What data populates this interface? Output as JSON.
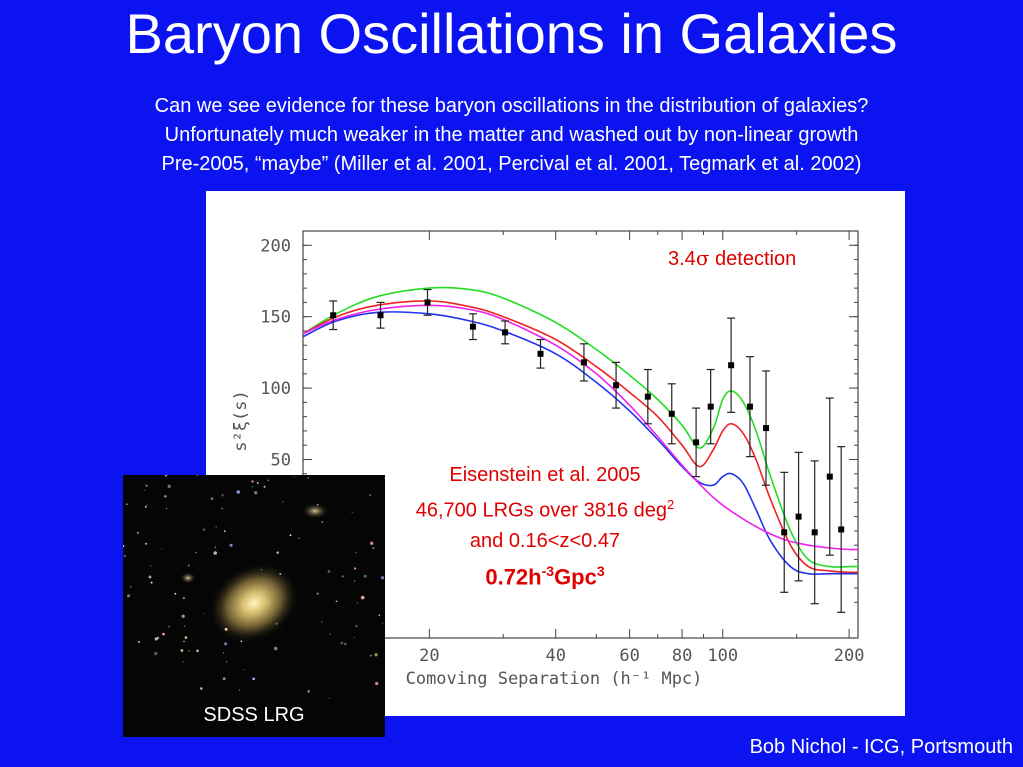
{
  "slide": {
    "title": "Baryon Oscillations in Galaxies",
    "bullets": [
      "Can we see evidence for these baryon oscillations in the distribution of galaxies?",
      "Unfortunately much weaker in the matter and washed out by non-linear growth",
      "Pre-2005, “maybe” (Miller et al. 2001, Percival et al. 2001, Tegmark et al. 2002)"
    ],
    "footer": "Bob Nichol - ICG, Portsmouth",
    "galaxy_label": "SDSS LRG",
    "detection_text_prefix": "3.4",
    "detection_sigma": "σ",
    "detection_text_suffix": " detection",
    "annotation": {
      "line1": "Eisenstein et al. 2005",
      "line2_prefix": "46,700 LRGs over 3816 deg",
      "line2_sup": "2",
      "line3": "and 0.16<z<0.47",
      "line4_a": "0.72h",
      "line4_sup1": "-3",
      "line4_b": "Gpc",
      "line4_sup2": "3"
    }
  },
  "chart_data": {
    "type": "line",
    "xlabel": "Comoving Separation (h⁻¹ Mpc)",
    "ylabel": "s²ξ(s)",
    "x_scale": "log",
    "xlim": [
      10,
      210
    ],
    "ylim": [
      -75,
      210
    ],
    "xticks": [
      20,
      40,
      60,
      80,
      100,
      200
    ],
    "yticks": [
      50,
      100,
      150,
      200
    ],
    "points": [
      {
        "x": 11.8,
        "y": 151,
        "err": 10
      },
      {
        "x": 15.3,
        "y": 151,
        "err": 9
      },
      {
        "x": 19.8,
        "y": 160,
        "err": 9
      },
      {
        "x": 25.4,
        "y": 143,
        "err": 9
      },
      {
        "x": 30.3,
        "y": 139,
        "err": 8
      },
      {
        "x": 36.8,
        "y": 124,
        "err": 10
      },
      {
        "x": 46.7,
        "y": 118,
        "err": 13
      },
      {
        "x": 55.7,
        "y": 102,
        "err": 16
      },
      {
        "x": 66.3,
        "y": 94,
        "err": 19
      },
      {
        "x": 75.6,
        "y": 82,
        "err": 21
      },
      {
        "x": 86.4,
        "y": 62,
        "err": 24
      },
      {
        "x": 93.6,
        "y": 87,
        "err": 26
      },
      {
        "x": 104.7,
        "y": 116,
        "err": 33
      },
      {
        "x": 116.1,
        "y": 87,
        "err": 35
      },
      {
        "x": 126.8,
        "y": 72,
        "err": 40
      },
      {
        "x": 140.1,
        "y": -1,
        "err": 42
      },
      {
        "x": 151.6,
        "y": 10,
        "err": 45
      },
      {
        "x": 165.6,
        "y": -1,
        "err": 50
      },
      {
        "x": 179.9,
        "y": 38,
        "err": 55
      },
      {
        "x": 191.5,
        "y": 1,
        "err": 58
      }
    ],
    "series": [
      {
        "color": "#22dd22",
        "x": [
          10,
          12,
          15,
          20,
          25,
          30,
          40,
          50,
          60,
          70,
          80,
          88,
          95,
          100,
          105,
          112,
          120,
          130,
          145,
          160,
          180,
          200,
          210
        ],
        "y": [
          138,
          152,
          164,
          170,
          169,
          163,
          146,
          127,
          109,
          92,
          74,
          58,
          72,
          92,
          98,
          90,
          70,
          38,
          0,
          -20,
          -25,
          -25,
          -25
        ]
      },
      {
        "color": "#ee2222",
        "x": [
          10,
          12,
          15,
          20,
          25,
          30,
          40,
          50,
          60,
          70,
          80,
          88,
          95,
          100,
          105,
          112,
          120,
          130,
          145,
          160,
          180,
          200,
          210
        ],
        "y": [
          138,
          150,
          158,
          161,
          157,
          150,
          134,
          115,
          97,
          80,
          60,
          45,
          57,
          70,
          75,
          68,
          50,
          22,
          -10,
          -25,
          -28,
          -29,
          -29
        ]
      },
      {
        "color": "#2233ee",
        "x": [
          10,
          12,
          15,
          20,
          25,
          30,
          40,
          50,
          60,
          70,
          80,
          88,
          95,
          100,
          105,
          112,
          120,
          130,
          145,
          160,
          180,
          200,
          210
        ],
        "y": [
          136,
          147,
          153,
          152,
          147,
          140,
          124,
          104,
          84,
          64,
          45,
          34,
          32,
          38,
          40,
          33,
          15,
          -7,
          -25,
          -30,
          -30,
          -30,
          -30
        ]
      },
      {
        "color": "#ee22ee",
        "x": [
          10,
          12,
          15,
          20,
          25,
          30,
          40,
          50,
          60,
          70,
          80,
          90,
          100,
          120,
          140,
          160,
          180,
          200,
          210
        ],
        "y": [
          138,
          148,
          155,
          158,
          155,
          148,
          130,
          110,
          88,
          66,
          46,
          30,
          18,
          3,
          -6,
          -10,
          -12,
          -13,
          -13
        ]
      }
    ]
  }
}
